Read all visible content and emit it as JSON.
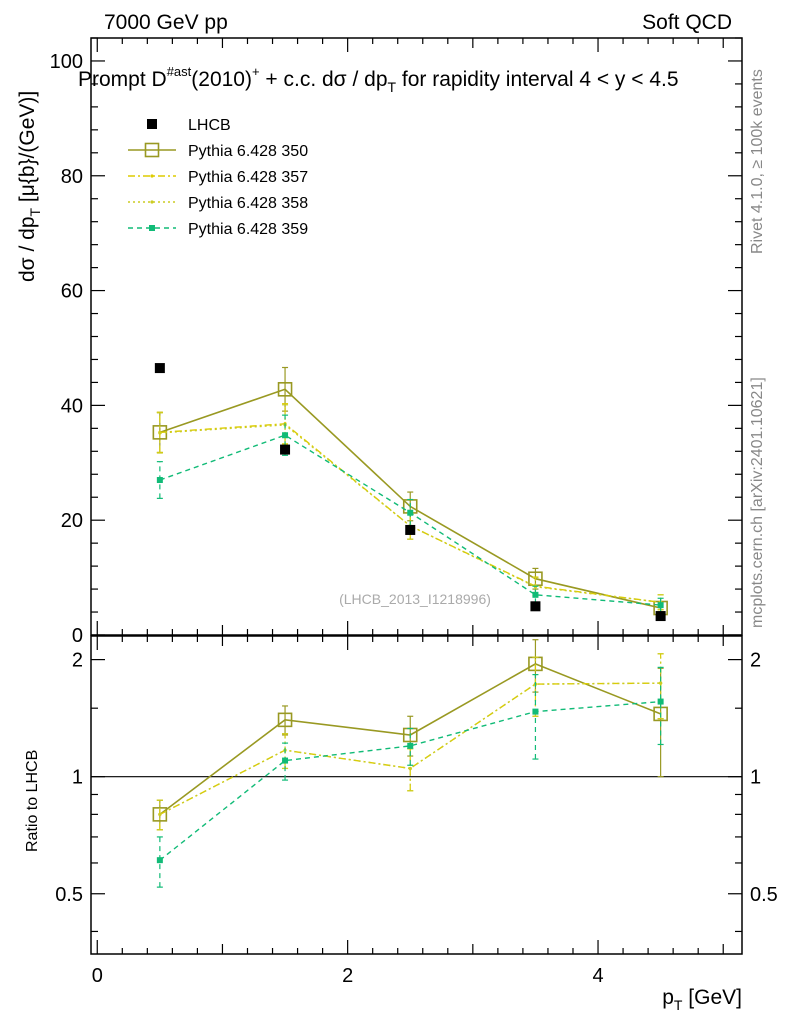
{
  "header": {
    "left": "7000 GeV pp",
    "right": "Soft QCD"
  },
  "side_labels": {
    "rivet": "Rivet 4.1.0, ≥ 100k events",
    "mcplots": "mcplots.cern.ch [arXiv:2401.10621]"
  },
  "colors": {
    "data": "#000000",
    "p350": "#999922",
    "p357": "#ddcc00",
    "p358": "#cccc22",
    "p359": "#11bb77"
  },
  "chart_data": [
    {
      "type": "scatter",
      "panel": "main",
      "title": {
        "pre": "Prompt D",
        "sup1": "#ast",
        "mid": "(2010)",
        "sup2": "+",
        "post": " + c.c.  dσ / dp",
        "sub": "T",
        "tail": " for rapidity interval 4 < y < 4.5"
      },
      "ylabel": {
        "pre": "dσ / dp",
        "sub": "T",
        "post": " [μ{b}/(GeV)]"
      },
      "watermark": "(LHCB_2013_I1218996)",
      "xlim": [
        -0.05,
        5.15
      ],
      "ylim": [
        0,
        104
      ],
      "yticks": [
        0,
        20,
        40,
        60,
        80,
        100
      ],
      "legend_position": "top-left",
      "series": [
        {
          "name": "LHCB",
          "style": "data",
          "x": [
            0.5,
            1.5,
            2.5,
            3.5,
            4.5
          ],
          "y": [
            46.5,
            32.3,
            18.3,
            5.0,
            3.3
          ],
          "err": [
            0,
            0.8,
            0.7,
            0.4,
            0.3
          ]
        },
        {
          "name": "Pythia 6.428 350",
          "style": "p350",
          "x": [
            0.5,
            1.5,
            2.5,
            3.5,
            4.5
          ],
          "y": [
            35.3,
            42.8,
            22.4,
            9.8,
            4.7
          ],
          "err": [
            3.5,
            3.8,
            2.5,
            1.8,
            1.1
          ]
        },
        {
          "name": "Pythia 6.428 357",
          "style": "p357",
          "x": [
            0.5,
            1.5,
            2.5,
            3.5,
            4.5
          ],
          "y": [
            35.3,
            36.8,
            19.0,
            8.5,
            5.7
          ],
          "err": [
            3.5,
            3.5,
            2.3,
            1.6,
            1.3
          ]
        },
        {
          "name": "Pythia 6.428 358",
          "style": "p358",
          "x": [
            0.5,
            1.5,
            2.5,
            3.5,
            4.5
          ],
          "y": [
            35.2,
            36.6,
            19.0,
            8.4,
            5.7
          ],
          "err": [
            3.5,
            3.5,
            2.3,
            1.6,
            1.3
          ]
        },
        {
          "name": "Pythia 6.428 359",
          "style": "p359",
          "x": [
            0.5,
            1.5,
            2.5,
            3.5,
            4.5
          ],
          "y": [
            27.0,
            34.8,
            21.3,
            7.0,
            5.2
          ],
          "err": [
            3.2,
            3.5,
            2.3,
            1.5,
            1.2
          ]
        }
      ]
    },
    {
      "type": "scatter",
      "panel": "ratio",
      "ylabel": "Ratio to LHCB",
      "xlabel": {
        "pre": "p",
        "sub": "T",
        "post": " [GeV]"
      },
      "xlim": [
        -0.05,
        5.15
      ],
      "ylim": [
        0.35,
        2.3
      ],
      "yticks": [
        0.5,
        1,
        2
      ],
      "xticks": [
        0,
        2,
        4
      ],
      "reference_line": 1,
      "series": [
        {
          "name": "Pythia 6.428 350",
          "style": "p350",
          "x": [
            0.5,
            1.5,
            2.5,
            3.5,
            4.5
          ],
          "y": [
            0.8,
            1.4,
            1.28,
            1.95,
            1.45
          ],
          "err": [
            0.07,
            0.12,
            0.15,
            0.3,
            0.45
          ]
        },
        {
          "name": "Pythia 6.428 357",
          "style": "p357",
          "x": [
            0.5,
            1.5,
            2.5,
            3.5,
            4.5
          ],
          "y": [
            0.8,
            1.17,
            1.05,
            1.73,
            1.74
          ],
          "err": [
            0.07,
            0.12,
            0.13,
            0.3,
            0.33
          ]
        },
        {
          "name": "Pythia 6.428 358",
          "style": "p358",
          "x": [
            0.5,
            1.5,
            2.5,
            3.5,
            4.5
          ],
          "y": [
            0.8,
            1.17,
            1.05,
            1.73,
            1.74
          ],
          "err": [
            0.07,
            0.12,
            0.13,
            0.3,
            0.33
          ]
        },
        {
          "name": "Pythia 6.428 359",
          "style": "p359",
          "x": [
            0.5,
            1.5,
            2.5,
            3.5,
            4.5
          ],
          "y": [
            0.61,
            1.1,
            1.2,
            1.47,
            1.56
          ],
          "err": [
            0.09,
            0.12,
            0.13,
            0.36,
            0.35
          ]
        }
      ]
    }
  ]
}
